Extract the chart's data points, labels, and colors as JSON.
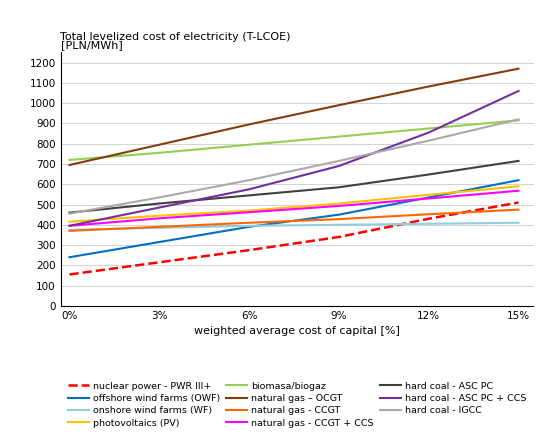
{
  "title": "Total levelized cost of electricity (T-LCOE)\n[PLN/MWh]",
  "xlabel": "weighted average cost of capital [%]",
  "x": [
    0,
    3,
    6,
    9,
    12,
    15
  ],
  "xtick_labels": [
    "0%",
    "3%",
    "6%",
    "9%",
    "12%",
    "15%"
  ],
  "ylim": [
    0,
    1250
  ],
  "yticks": [
    0,
    100,
    200,
    300,
    400,
    500,
    600,
    700,
    800,
    900,
    1000,
    1100,
    1200
  ],
  "series": [
    {
      "label": "nuclear power - PWR III+",
      "color": "#FF0000",
      "linestyle": "--",
      "linewidth": 1.8,
      "values": [
        155,
        215,
        275,
        340,
        430,
        510
      ]
    },
    {
      "label": "offshore wind farms (OWF)",
      "color": "#0070C0",
      "linestyle": "-",
      "linewidth": 1.5,
      "values": [
        240,
        315,
        390,
        450,
        535,
        620
      ]
    },
    {
      "label": "onshore wind farms (WF)",
      "color": "#92CDDC",
      "linestyle": "-",
      "linewidth": 1.5,
      "values": [
        375,
        385,
        395,
        400,
        405,
        410
      ]
    },
    {
      "label": "photovoltaics (PV)",
      "color": "#FFC000",
      "linestyle": "-",
      "linewidth": 1.5,
      "values": [
        415,
        445,
        470,
        505,
        548,
        590
      ]
    },
    {
      "label": "biomasa/biogaz",
      "color": "#92D050",
      "linestyle": "-",
      "linewidth": 1.5,
      "values": [
        720,
        755,
        795,
        835,
        875,
        915
      ]
    },
    {
      "label": "natural gas – OCGT",
      "color": "#843C0C",
      "linestyle": "-",
      "linewidth": 1.5,
      "values": [
        695,
        795,
        895,
        990,
        1082,
        1170
      ]
    },
    {
      "label": "natural gas - CCGT",
      "color": "#FF6600",
      "linestyle": "-",
      "linewidth": 1.5,
      "values": [
        370,
        390,
        410,
        428,
        452,
        475
      ]
    },
    {
      "label": "natural gas - CCGT + CCS",
      "color": "#FF00FF",
      "linestyle": "-",
      "linewidth": 1.5,
      "values": [
        395,
        432,
        462,
        493,
        530,
        568
      ]
    },
    {
      "label": "hard coal - ASC PC",
      "color": "#404040",
      "linestyle": "-",
      "linewidth": 1.5,
      "values": [
        460,
        505,
        545,
        585,
        648,
        715
      ]
    },
    {
      "label": "hard coal - ASC PC + CCS",
      "color": "#7030A0",
      "linestyle": "-",
      "linewidth": 1.5,
      "values": [
        395,
        485,
        575,
        690,
        855,
        1060
      ]
    },
    {
      "label": "hard coal - IGCC",
      "color": "#AAAAAA",
      "linestyle": "-",
      "linewidth": 1.5,
      "values": [
        455,
        535,
        620,
        715,
        815,
        920
      ]
    }
  ],
  "legend_rows": [
    [
      "nuclear power - PWR III+",
      "offshore wind farms (OWF)",
      "onshore wind farms (WF)"
    ],
    [
      "photovoltaics (PV)",
      "biomasa/biogaz",
      "natural gas – OCGT"
    ],
    [
      "natural gas - CCGT",
      "natural gas - CCGT + CCS",
      "hard coal - ASC PC"
    ],
    [
      "hard coal - ASC PC + CCS",
      "hard coal - IGCC",
      ""
    ]
  ]
}
